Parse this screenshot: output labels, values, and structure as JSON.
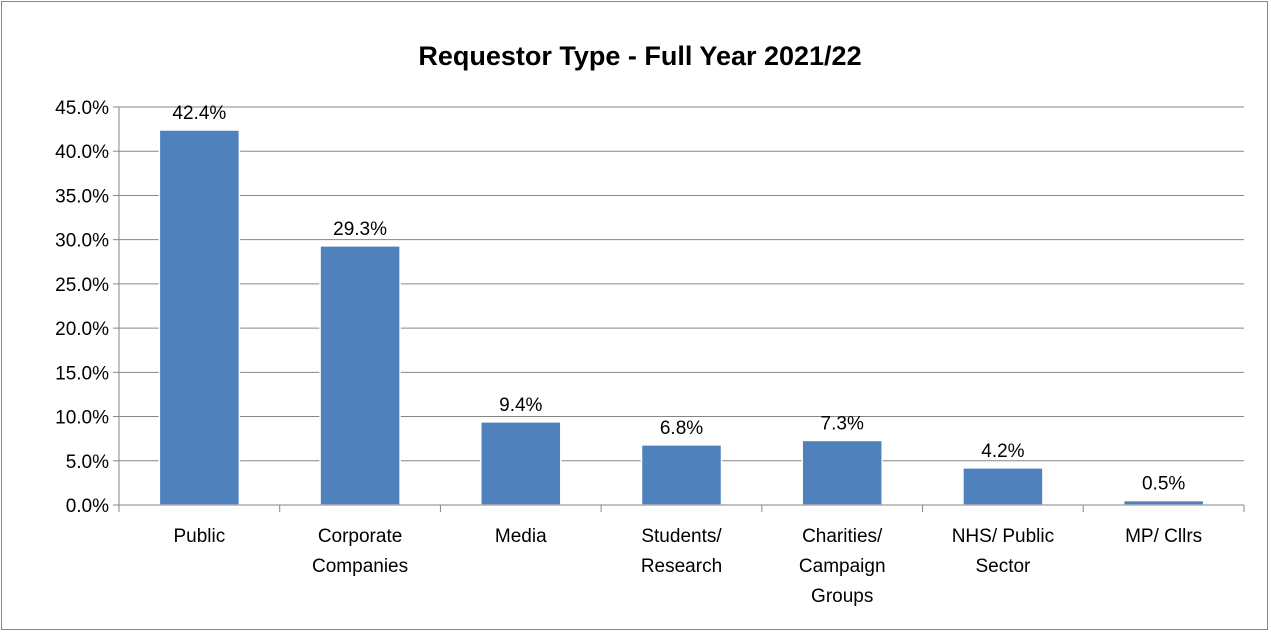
{
  "chart_data": {
    "type": "bar",
    "title": "Requestor Type - Full Year 2021/22",
    "xlabel": "",
    "ylabel": "",
    "categories": [
      [
        "Public"
      ],
      [
        "Corporate",
        "Companies"
      ],
      [
        "Media"
      ],
      [
        "Students/",
        "Research"
      ],
      [
        "Charities/",
        "Campaign",
        "Groups"
      ],
      [
        "NHS/ Public",
        "Sector"
      ],
      [
        "MP/ Cllrs"
      ]
    ],
    "values": [
      42.4,
      29.3,
      9.4,
      6.8,
      7.3,
      4.2,
      0.5
    ],
    "data_labels": [
      "42.4%",
      "29.3%",
      "9.4%",
      "6.8%",
      "7.3%",
      "4.2%",
      "0.5%"
    ],
    "ylim": [
      0,
      45
    ],
    "yticks": [
      0,
      5,
      10,
      15,
      20,
      25,
      30,
      35,
      40,
      45
    ],
    "ytick_labels": [
      "0.0%",
      "5.0%",
      "10.0%",
      "15.0%",
      "20.0%",
      "25.0%",
      "30.0%",
      "35.0%",
      "40.0%",
      "45.0%"
    ],
    "grid": true,
    "legend": "none",
    "bar_color": "#4f81bd",
    "grid_color": "#868686"
  }
}
